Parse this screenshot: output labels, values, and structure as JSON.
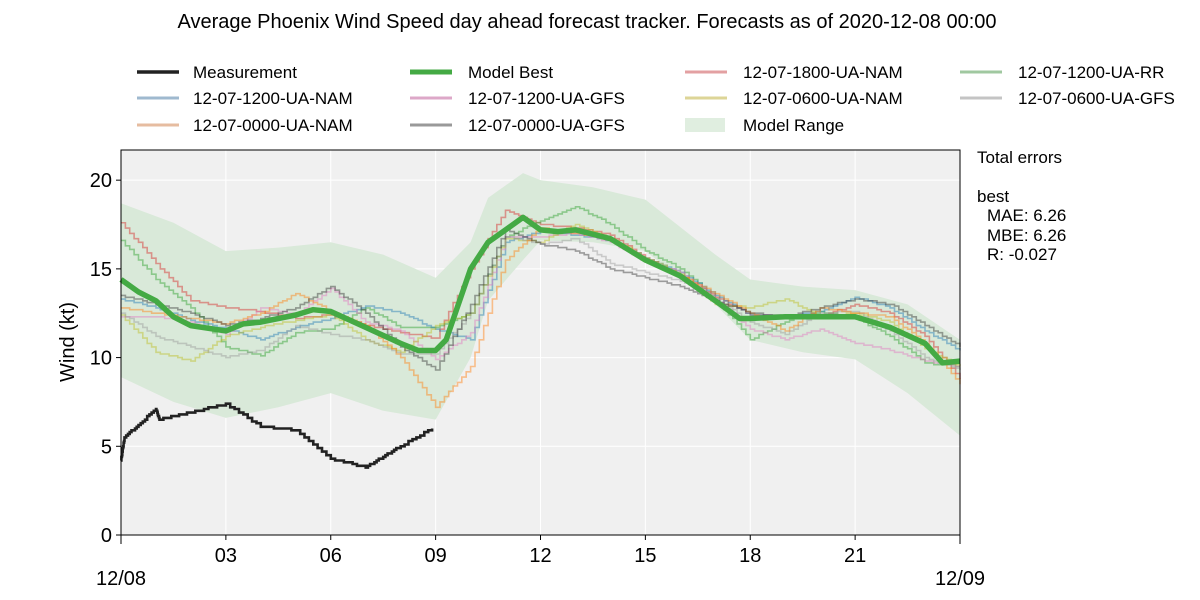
{
  "chart_data": {
    "type": "line",
    "title": "Average Phoenix Wind Speed day ahead forecast tracker. Forecasts as of 2020-12-08 00:00",
    "xlabel": "",
    "ylabel": "Wind (kt)",
    "xlim": [
      0,
      24
    ],
    "ylim": [
      0,
      21.7
    ],
    "grid": true,
    "legend_position": "top",
    "x_ticks": [
      {
        "h": 3,
        "label": "03"
      },
      {
        "h": 6,
        "label": "06"
      },
      {
        "h": 9,
        "label": "09"
      },
      {
        "h": 12,
        "label": "12"
      },
      {
        "h": 15,
        "label": "15"
      },
      {
        "h": 18,
        "label": "18"
      },
      {
        "h": 21,
        "label": "21"
      }
    ],
    "date_labels": [
      {
        "h": 0,
        "label": "12/08"
      },
      {
        "h": 24,
        "label": "12/09"
      }
    ],
    "y_ticks": [
      0,
      5,
      10,
      15,
      20
    ],
    "x_hours": [
      0,
      1,
      2,
      3,
      4,
      5,
      6,
      7,
      8,
      9,
      10,
      11,
      12,
      13,
      14,
      15,
      16,
      17,
      18,
      19,
      20,
      21,
      22,
      23,
      24
    ],
    "measurement": {
      "name": "Measurement",
      "color": "#222222",
      "x": [
        0,
        0.1,
        0.5,
        1.0,
        1.1,
        2,
        3,
        4,
        5,
        6,
        7,
        7.5,
        8,
        8.9
      ],
      "y": [
        4.2,
        5.5,
        6.2,
        7.1,
        6.5,
        6.9,
        7.4,
        6.1,
        5.9,
        4.3,
        3.8,
        4.4,
        5.0,
        6.0
      ]
    },
    "model_best": {
      "name": "Model Best",
      "color": "#44aa44",
      "x": [
        0,
        0.5,
        1,
        1.5,
        2,
        3,
        3.5,
        4,
        5,
        5.5,
        6,
        7,
        8,
        8.5,
        9,
        9.3,
        10,
        10.5,
        11,
        11.5,
        12,
        12.5,
        13,
        14,
        15,
        16,
        17,
        17.7,
        18,
        19,
        20,
        21,
        22,
        23,
        23.5,
        24
      ],
      "y": [
        14.4,
        13.7,
        13.2,
        12.3,
        11.8,
        11.5,
        11.9,
        12.0,
        12.4,
        12.7,
        12.6,
        11.7,
        10.8,
        10.4,
        10.4,
        11.0,
        15.0,
        16.5,
        17.2,
        17.9,
        17.2,
        17.1,
        17.2,
        16.7,
        15.5,
        14.6,
        13.2,
        12.2,
        12.2,
        12.3,
        12.3,
        12.3,
        11.7,
        10.8,
        9.7,
        9.8
      ]
    },
    "model_range": {
      "name": "Model Range",
      "color": "#d9e9d9",
      "x": [
        0,
        1.5,
        3,
        4.5,
        6,
        7.5,
        9,
        10,
        10.5,
        11.5,
        12,
        13.5,
        15,
        17,
        18,
        19.5,
        21,
        22.5,
        24
      ],
      "upper": [
        18.7,
        17.6,
        16.0,
        16.2,
        16.5,
        15.8,
        14.5,
        16.5,
        19.0,
        20.4,
        20.0,
        19.6,
        18.9,
        15.8,
        14.4,
        14.0,
        13.8,
        13.0,
        11.0
      ],
      "lower": [
        8.9,
        7.5,
        6.6,
        7.2,
        8.0,
        7.0,
        6.5,
        10.0,
        13.2,
        15.5,
        16.6,
        16.5,
        16.0,
        13.0,
        11.0,
        10.3,
        9.9,
        8.0,
        5.6
      ]
    },
    "series": [
      {
        "name": "12-07-1800-UA-NAM",
        "color": "#d62728",
        "values": [
          17.6,
          15.3,
          13.2,
          12.8,
          12.6,
          12.2,
          12.4,
          11.8,
          11.4,
          11.1,
          15.0,
          18.3,
          17.5,
          17.3,
          16.9,
          15.6,
          14.6,
          13.4,
          12.4,
          12.3,
          12.3,
          13.0,
          12.5,
          11.2,
          8.8
        ]
      },
      {
        "name": "12-07-1200-UA-RR",
        "color": "#2ca02c",
        "values": [
          16.6,
          14.4,
          12.8,
          10.6,
          10.1,
          11.4,
          11.6,
          12.8,
          11.7,
          11.7,
          12.5,
          16.8,
          17.7,
          18.5,
          17.5,
          16.0,
          15.0,
          13.3,
          11.0,
          12.0,
          12.6,
          12.2,
          11.2,
          9.7,
          9.5
        ]
      },
      {
        "name": "12-07-1200-UA-NAM",
        "color": "#1f77b4",
        "values": [
          13.3,
          12.8,
          12.1,
          11.6,
          11.0,
          11.7,
          12.2,
          12.9,
          12.5,
          11.6,
          11.0,
          16.5,
          17.1,
          16.9,
          16.6,
          15.6,
          14.8,
          13.5,
          12.4,
          12.3,
          12.6,
          13.4,
          12.8,
          11.5,
          10.4
        ]
      },
      {
        "name": "12-07-1200-UA-GFS",
        "color": "#e377c2",
        "values": [
          12.3,
          12.3,
          12.0,
          11.3,
          12.8,
          12.4,
          13.9,
          12.0,
          11.5,
          9.9,
          11.4,
          16.8,
          16.8,
          17.0,
          16.5,
          15.4,
          14.8,
          13.3,
          11.6,
          11.0,
          11.6,
          10.8,
          10.4,
          9.8,
          9.5
        ]
      },
      {
        "name": "12-07-0600-UA-NAM",
        "color": "#bcbd22",
        "values": [
          12.4,
          10.3,
          9.8,
          11.2,
          11.7,
          12.1,
          12.4,
          11.0,
          10.3,
          11.8,
          12.5,
          16.7,
          16.5,
          17.5,
          16.7,
          15.6,
          14.7,
          13.0,
          12.8,
          13.3,
          12.3,
          12.5,
          12.0,
          10.5,
          9.5
        ]
      },
      {
        "name": "12-07-0600-UA-GFS",
        "color": "#999999",
        "values": [
          12.5,
          11.2,
          10.6,
          10.0,
          10.4,
          11.8,
          11.3,
          11.0,
          10.2,
          10.2,
          12.5,
          16.8,
          16.4,
          16.7,
          15.3,
          14.8,
          14.3,
          13.3,
          12.0,
          11.3,
          12.5,
          12.6,
          11.5,
          10.0,
          9.3
        ]
      },
      {
        "name": "12-07-0000-UA-NAM",
        "color": "#ff7f0e",
        "values": [
          12.8,
          12.5,
          12.2,
          11.9,
          12.5,
          13.6,
          12.6,
          11.8,
          10.0,
          7.2,
          9.5,
          15.5,
          17.3,
          17.0,
          16.7,
          15.4,
          14.6,
          13.6,
          12.5,
          11.5,
          12.8,
          12.5,
          12.3,
          10.8,
          8.5
        ]
      },
      {
        "name": "12-07-0000-UA-GFS",
        "color": "#333333",
        "values": [
          13.5,
          13.0,
          12.5,
          11.8,
          12.2,
          12.8,
          14.0,
          12.5,
          10.6,
          9.3,
          13.0,
          17.2,
          16.4,
          16.0,
          15.0,
          14.5,
          14.0,
          13.2,
          12.5,
          12.3,
          12.8,
          13.3,
          13.0,
          11.8,
          10.6
        ]
      }
    ],
    "legend": [
      {
        "label": "Measurement",
        "color": "#222222",
        "kind": "line-thick"
      },
      {
        "label": "12-07-1200-UA-NAM",
        "color": "#9fb9cf",
        "kind": "line"
      },
      {
        "label": "12-07-0000-UA-NAM",
        "color": "#e6bca0",
        "kind": "line"
      },
      {
        "label": "Model Best",
        "color": "#44aa44",
        "kind": "line-best"
      },
      {
        "label": "12-07-1200-UA-GFS",
        "color": "#dda8c8",
        "kind": "line"
      },
      {
        "label": "12-07-0000-UA-GFS",
        "color": "#999999",
        "kind": "line"
      },
      {
        "label": "12-07-1800-UA-NAM",
        "color": "#e3a0a2",
        "kind": "line"
      },
      {
        "label": "12-07-0600-UA-NAM",
        "color": "#ddd597",
        "kind": "line"
      },
      {
        "label": "Model Range",
        "color": "#e0eee0",
        "kind": "patch"
      },
      {
        "label": "12-07-1200-UA-RR",
        "color": "#a0c8a0",
        "kind": "line"
      },
      {
        "label": "12-07-0600-UA-GFS",
        "color": "#c4c4c4",
        "kind": "line"
      }
    ],
    "errors": {
      "heading": "Total errors",
      "model": "best",
      "mae": "MAE: 6.26",
      "mbe": "MBE: 6.26",
      "r": "R: -0.027"
    }
  }
}
